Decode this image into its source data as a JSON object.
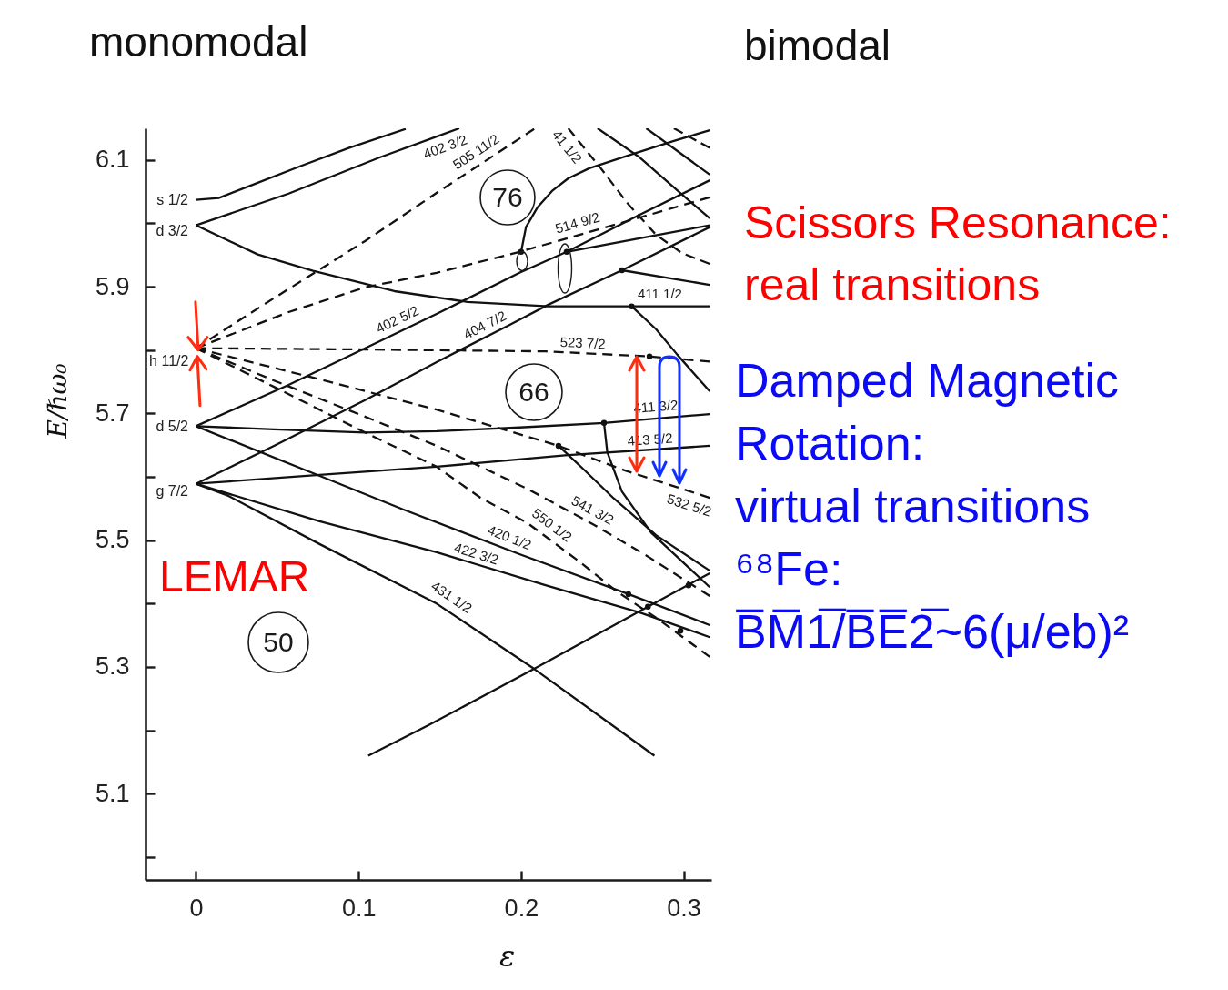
{
  "chart_data": {
    "type": "line",
    "xlabel": "ε",
    "ylabel": "E/ℏω₀",
    "xlim": [
      -0.031,
      0.317
    ],
    "ylim": [
      4.964,
      6.15
    ],
    "xticks": [
      0,
      0.1,
      0.2,
      0.3
    ],
    "yticks": [
      {
        "value": 5.0,
        "label": null
      },
      5.1,
      {
        "value": 5.2,
        "label": null
      },
      5.3,
      {
        "value": 5.4,
        "label": null
      },
      5.5,
      {
        "value": 5.6,
        "label": null
      },
      5.7,
      {
        "value": 5.8,
        "label": null
      },
      5.9,
      {
        "value": 6.0,
        "label": null
      },
      6.1
    ],
    "series": [
      {
        "color": "#111111",
        "x": [
          0,
          0.014,
          0.038,
          0.064,
          0.094,
          0.129
        ],
        "values": [
          6.037,
          6.04,
          6.064,
          6.09,
          6.119,
          6.149
        ]
      },
      {
        "name": "402 3/2",
        "color": "#111111",
        "x": [
          0,
          0.057,
          0.113,
          0.148,
          0.162
        ],
        "values": [
          5.997,
          6.047,
          6.104,
          6.137,
          6.15
        ]
      },
      {
        "name": "411 1/2",
        "color": "#111111",
        "x": [
          0,
          0.038,
          0.072,
          0.122,
          0.167,
          0.217,
          0.268,
          0.316
        ],
        "values": [
          5.997,
          5.951,
          5.925,
          5.893,
          5.876,
          5.869,
          5.869,
          5.869
        ]
      },
      {
        "name": "402 5/2",
        "color": "#111111",
        "x": [
          0,
          0.057,
          0.104,
          0.148,
          0.199,
          0.228,
          0.271,
          0.316
        ],
        "values": [
          5.68,
          5.745,
          5.803,
          5.857,
          5.922,
          5.955,
          6.011,
          6.068
        ]
      },
      {
        "name": "404 7/2",
        "color": "#111111",
        "x": [
          0,
          0.048,
          0.104,
          0.148,
          0.193,
          0.217,
          0.262,
          0.316
        ],
        "values": [
          5.589,
          5.649,
          5.721,
          5.781,
          5.84,
          5.872,
          5.926,
          5.994
        ]
      },
      {
        "name": "411 3/2",
        "color": "#111111",
        "x": [
          0,
          0.048,
          0.104,
          0.148,
          0.199,
          0.251,
          0.316
        ],
        "values": [
          5.68,
          5.675,
          5.67,
          5.672,
          5.678,
          5.685,
          5.699
        ]
      },
      {
        "name": "413 5/2",
        "color": "#111111",
        "x": [
          0,
          0.076,
          0.148,
          0.227,
          0.316
        ],
        "values": [
          5.589,
          5.603,
          5.616,
          5.634,
          5.649
        ]
      },
      {
        "name": "420 1/2",
        "color": "#111111",
        "x": [
          0,
          0.064,
          0.128,
          0.199,
          0.266,
          0.316
        ],
        "values": [
          5.68,
          5.614,
          5.548,
          5.478,
          5.415,
          5.366
        ]
      },
      {
        "name": "422 3/2",
        "color": "#111111",
        "x": [
          0,
          0.076,
          0.148,
          0.215,
          0.273,
          0.316
        ],
        "values": [
          5.589,
          5.53,
          5.481,
          5.429,
          5.386,
          5.347
        ]
      },
      {
        "name": "431 1/2",
        "color": "#111111",
        "x": [
          0,
          0.02,
          0.076,
          0.148,
          0.208,
          0.282
        ],
        "values": [
          5.589,
          5.57,
          5.494,
          5.4,
          5.297,
          5.16
        ]
      },
      {
        "name": "505 11/2",
        "color": "#111111",
        "line_style": "dashed",
        "x": [
          0,
          0.048,
          0.104,
          0.148,
          0.195,
          0.208
        ],
        "values": [
          5.803,
          5.882,
          5.972,
          6.048,
          6.127,
          6.149
        ]
      },
      {
        "name": "514 9/2",
        "color": "#111111",
        "line_style": "dashed",
        "x": [
          0,
          0.057,
          0.104,
          0.148,
          0.199,
          0.262,
          0.316
        ],
        "values": [
          5.803,
          5.86,
          5.899,
          5.922,
          5.955,
          6.001,
          6.041
        ]
      },
      {
        "name": "523 7/2",
        "color": "#111111",
        "line_style": "dashed",
        "x": [
          0,
          0.104,
          0.215,
          0.279,
          0.316
        ],
        "values": [
          5.803,
          5.801,
          5.798,
          5.79,
          5.782
        ]
      },
      {
        "name": "532 5/2",
        "color": "#111111",
        "line_style": "dashed",
        "x": [
          0,
          0.076,
          0.148,
          0.223,
          0.264,
          0.316
        ],
        "values": [
          5.803,
          5.754,
          5.706,
          5.649,
          5.61,
          5.567
        ]
      },
      {
        "name": "541 3/2",
        "color": "#111111",
        "line_style": "dashed",
        "x": [
          0,
          0.048,
          0.104,
          0.148,
          0.204,
          0.243,
          0.277,
          0.316
        ],
        "values": [
          5.803,
          5.752,
          5.695,
          5.649,
          5.581,
          5.527,
          5.476,
          5.412
        ]
      },
      {
        "name": "550 1/2",
        "color": "#111111",
        "line_style": "dashed",
        "x": [
          0,
          0.048,
          0.104,
          0.148,
          0.175,
          0.204,
          0.236,
          0.259,
          0.284,
          0.316
        ],
        "values": [
          5.803,
          5.742,
          5.67,
          5.616,
          5.567,
          5.527,
          5.466,
          5.419,
          5.376,
          5.316
        ]
      },
      {
        "name": "41 1/2",
        "color": "#111111",
        "line_style": "dashed",
        "x": [
          0.229,
          0.249,
          0.266,
          0.283,
          0.299,
          0.316
        ],
        "values": [
          6.15,
          6.087,
          6.03,
          5.982,
          5.953,
          5.936
        ]
      },
      {
        "color": "#111111",
        "line_style": "dashed",
        "x": [
          0.294,
          0.316
        ],
        "values": [
          6.15,
          6.119
        ]
      },
      {
        "color": "#111111",
        "x": [
          0.247,
          0.273,
          0.301,
          0.316
        ],
        "values": [
          6.15,
          6.104,
          6.041,
          6.008
        ]
      },
      {
        "color": "#111111",
        "x": [
          0.277,
          0.316
        ],
        "values": [
          6.15,
          6.077
        ]
      },
      {
        "color": "#111111",
        "x": [
          0.2,
          0.203,
          0.21,
          0.219,
          0.229,
          0.242,
          0.268,
          0.294,
          0.316
        ],
        "values": [
          5.955,
          5.994,
          6.025,
          6.051,
          6.071,
          6.087,
          6.109,
          6.13,
          6.147
        ]
      },
      {
        "color": "#111111",
        "x": [
          0.228,
          0.316
        ],
        "values": [
          5.955,
          5.997
        ]
      },
      {
        "color": "#111111",
        "x": [
          0.262,
          0.316
        ],
        "values": [
          5.926,
          5.903
        ]
      },
      {
        "color": "#111111",
        "x": [
          0.268,
          0.283,
          0.296,
          0.316
        ],
        "values": [
          5.869,
          5.833,
          5.793,
          5.735
        ]
      },
      {
        "color": "#111111",
        "x": [
          0.223,
          0.238,
          0.257,
          0.283,
          0.316
        ],
        "values": [
          5.649,
          5.613,
          5.566,
          5.508,
          5.452
        ]
      },
      {
        "color": "#111111",
        "x": [
          0.251,
          0.253,
          0.262,
          0.28,
          0.316
        ],
        "values": [
          5.685,
          5.639,
          5.577,
          5.512,
          5.426
        ]
      },
      {
        "color": "#111111",
        "x": [
          0.106,
          0.143,
          0.208,
          0.278,
          0.316
        ],
        "values": [
          5.16,
          5.208,
          5.297,
          5.395,
          5.448
        ]
      },
      {
        "type": "scatter",
        "marker": "circle",
        "color": "#111111",
        "x": [
          0.2,
          0.228,
          0.262,
          0.268,
          0.279,
          0.251,
          0.223,
          0.266,
          0.278,
          0.298,
          0.303
        ],
        "values": [
          5.955,
          5.955,
          5.926,
          5.869,
          5.79,
          5.685,
          5.649,
          5.415,
          5.395,
          5.357,
          5.429
        ]
      }
    ],
    "annotations": [
      "s 1/2",
      "d 3/2",
      {
        "text": "h 11/2",
        "x": 0,
        "y": 5.803
      },
      "d 5/2",
      "g 7/2",
      "76",
      "66",
      "50",
      "monomodal",
      "bimodal",
      "Scissors Resonance:\nreal transitions",
      "Damped Magnetic\nRotation:\nvirtual transitions\n⁶⁸Fe:\nB̅M̅1̅/B̅E̅2̅~6(μ/eb)²",
      "LEMAR"
    ]
  }
}
